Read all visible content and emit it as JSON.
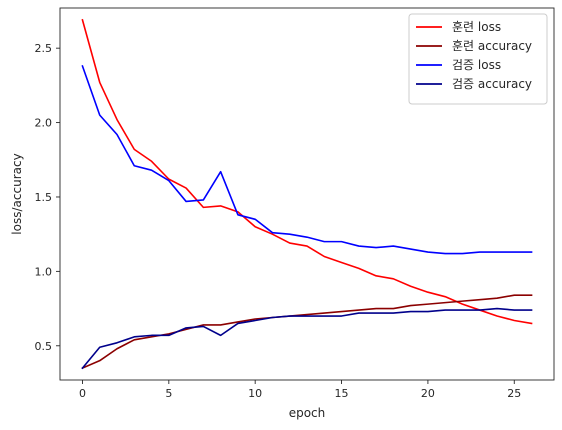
{
  "chart_data": {
    "type": "line",
    "title": "",
    "xlabel": "epoch",
    "ylabel": "loss/accuracy",
    "xlim": [
      -1.3,
      27.3
    ],
    "ylim": [
      0.27,
      2.77
    ],
    "xticks": [
      0,
      5,
      10,
      15,
      20,
      25
    ],
    "yticks": [
      0.5,
      1.0,
      1.5,
      2.0,
      2.5
    ],
    "xtick_labels": [
      "0",
      "5",
      "10",
      "15",
      "20",
      "25"
    ],
    "ytick_labels": [
      "0.5",
      "1.0",
      "1.5",
      "2.0",
      "2.5"
    ],
    "grid": false,
    "legend_position": "top-right",
    "x": [
      0,
      1,
      2,
      3,
      4,
      5,
      6,
      7,
      8,
      9,
      10,
      11,
      12,
      13,
      14,
      15,
      16,
      17,
      18,
      19,
      20,
      21,
      22,
      23,
      24,
      25,
      26
    ],
    "series": [
      {
        "name": "훈련 loss",
        "color": "#ff0000",
        "values": [
          2.69,
          2.27,
          2.02,
          1.82,
          1.74,
          1.62,
          1.56,
          1.43,
          1.44,
          1.4,
          1.3,
          1.25,
          1.19,
          1.17,
          1.1,
          1.06,
          1.02,
          0.97,
          0.95,
          0.9,
          0.86,
          0.83,
          0.78,
          0.74,
          0.7,
          0.67,
          0.65
        ]
      },
      {
        "name": "훈련 accuracy",
        "color": "#8b0000",
        "values": [
          0.35,
          0.4,
          0.48,
          0.54,
          0.56,
          0.58,
          0.61,
          0.64,
          0.64,
          0.66,
          0.68,
          0.69,
          0.7,
          0.71,
          0.72,
          0.73,
          0.74,
          0.75,
          0.75,
          0.77,
          0.78,
          0.79,
          0.8,
          0.81,
          0.82,
          0.84,
          0.84
        ]
      },
      {
        "name": "검증 loss",
        "color": "#0000ff",
        "values": [
          2.38,
          2.05,
          1.92,
          1.71,
          1.68,
          1.61,
          1.47,
          1.48,
          1.67,
          1.38,
          1.35,
          1.26,
          1.25,
          1.23,
          1.2,
          1.2,
          1.17,
          1.16,
          1.17,
          1.15,
          1.13,
          1.12,
          1.12,
          1.13,
          1.13,
          1.13,
          1.13
        ]
      },
      {
        "name": "검증 accuracy",
        "color": "#00008b",
        "values": [
          0.35,
          0.49,
          0.52,
          0.56,
          0.57,
          0.57,
          0.62,
          0.63,
          0.57,
          0.65,
          0.67,
          0.69,
          0.7,
          0.7,
          0.7,
          0.7,
          0.72,
          0.72,
          0.72,
          0.73,
          0.73,
          0.74,
          0.74,
          0.74,
          0.75,
          0.74,
          0.74
        ]
      }
    ]
  }
}
